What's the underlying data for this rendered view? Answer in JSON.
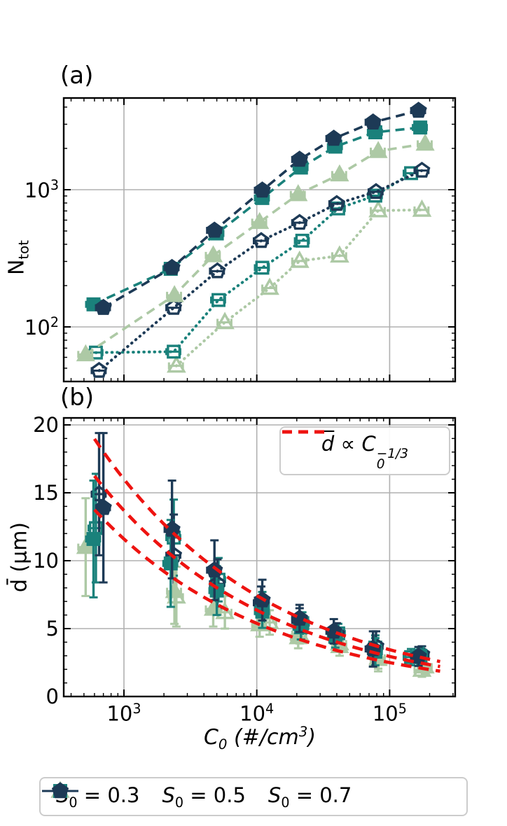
{
  "figure": {
    "panel_a_label": "(a)",
    "panel_b_label": "(b)",
    "colors": {
      "s03": "#adc9a5",
      "s05": "#1a817b",
      "s07": "#1d3a56",
      "fit": "#ee1310",
      "grid": "#b0b0b0",
      "spine": "#000000",
      "legend_border": "#cccccc"
    }
  },
  "axes": {
    "x": {
      "scale": "log",
      "min": 352,
      "max": 310000,
      "label": "C_0 (#/cm^3)",
      "ticks": [
        {
          "value": 1000,
          "label": "10^3"
        },
        {
          "value": 10000,
          "label": "10^4"
        },
        {
          "value": 100000,
          "label": "10^5"
        }
      ]
    },
    "a_y": {
      "scale": "log",
      "min": 40,
      "max": 4550,
      "label": "N_{tot}",
      "ticks": [
        {
          "value": 100,
          "label": "10^2"
        },
        {
          "value": 1000,
          "label": "10^3"
        }
      ]
    },
    "b_y": {
      "scale": "linear",
      "min": 0,
      "max": 20.5,
      "label": "d̄ (µm)",
      "ticks": [
        {
          "value": 0,
          "label": "0"
        },
        {
          "value": 5,
          "label": "5"
        },
        {
          "value": 10,
          "label": "10"
        },
        {
          "value": 15,
          "label": "15"
        },
        {
          "value": 20,
          "label": "20"
        }
      ]
    }
  },
  "chart_data": [
    {
      "panel": "a",
      "type": "line",
      "x_scale": "log",
      "y_scale": "log",
      "title": "",
      "xlabel": "",
      "ylabel": "N_tot",
      "xlim": [
        352,
        310000
      ],
      "ylim": [
        40,
        4550
      ],
      "grid": true,
      "series": [
        {
          "key": "s03_open",
          "name": "S0 = 0.3 (open)",
          "s0": 0.3,
          "marker": "triangle",
          "fill": "open",
          "linestyle": "dotted",
          "color_key": "s03",
          "x": [
            2480,
            5750,
            12500,
            21000,
            42000,
            82000,
            175000
          ],
          "y": [
            52,
            108,
            192,
            302,
            330,
            705,
            712
          ],
          "xerr_frac": 0.12
        },
        {
          "key": "s05_open",
          "name": "S0 = 0.5 (open)",
          "s0": 0.5,
          "marker": "square",
          "fill": "open",
          "linestyle": "dotted",
          "color_key": "s05",
          "x": [
            615,
            2370,
            5150,
            11000,
            22000,
            41000,
            78000,
            145000
          ],
          "y": [
            65,
            66,
            157,
            270,
            425,
            730,
            905,
            1320
          ],
          "xerr_frac": 0.12
        },
        {
          "key": "s07_open",
          "name": "S0 = 0.7 (open)",
          "s0": 0.7,
          "marker": "pentagon",
          "fill": "open",
          "linestyle": "dotted",
          "color_key": "s07",
          "x": [
            650,
            2370,
            5050,
            10800,
            21000,
            40000,
            79000,
            175000
          ],
          "y": [
            48,
            138,
            255,
            424,
            575,
            790,
            965,
            1380
          ],
          "xerr_frac": 0.12
        },
        {
          "key": "s03_filled",
          "name": "S0 = 0.3",
          "s0": 0.3,
          "marker": "triangle",
          "fill": "solid",
          "linestyle": "dashed",
          "color_key": "s03",
          "x": [
            515,
            2400,
            4700,
            10500,
            20500,
            42000,
            82000,
            185000
          ],
          "y": [
            63,
            170,
            332,
            580,
            925,
            1290,
            1910,
            2160
          ],
          "xerr_frac": 0.12
        },
        {
          "key": "s05_filled",
          "name": "S0 = 0.5",
          "s0": 0.5,
          "marker": "square",
          "fill": "solid",
          "linestyle": "dashed",
          "color_key": "s05",
          "x": [
            590,
            2250,
            5000,
            11000,
            21500,
            39000,
            78000,
            170000
          ],
          "y": [
            146,
            265,
            480,
            870,
            1450,
            2060,
            2620,
            2840
          ],
          "xerr_frac": 0.12
        },
        {
          "key": "s07_filled",
          "name": "S0 = 0.7",
          "s0": 0.7,
          "marker": "pentagon",
          "fill": "solid",
          "linestyle": "dashed",
          "color_key": "s07",
          "x": [
            700,
            2300,
            4800,
            11000,
            21000,
            38000,
            75000,
            165000
          ],
          "y": [
            138,
            270,
            505,
            990,
            1660,
            2360,
            3100,
            3770
          ],
          "xerr_frac": 0.12
        }
      ]
    },
    {
      "panel": "b",
      "type": "scatter",
      "x_scale": "log",
      "y_scale": "linear",
      "title": "",
      "xlabel": "C_0 (#/cm^3)",
      "ylabel": "d_bar (µm)",
      "xlim": [
        352,
        310000
      ],
      "ylim": [
        0,
        20.5
      ],
      "grid": true,
      "series": [
        {
          "key": "s03_open",
          "name": "S0 = 0.3 (open)",
          "s0": 0.3,
          "marker": "triangle",
          "fill": "open",
          "color_key": "s03",
          "x": [
            2480,
            5750,
            12500,
            21000,
            42000,
            82000,
            175000
          ],
          "y": [
            7.35,
            6.2,
            5.45,
            4.6,
            3.9,
            2.85,
            1.95
          ],
          "yerr": [
            2.2,
            1.2,
            0.9,
            0.7,
            0.6,
            0.8,
            0.5
          ],
          "xerr_frac": 0.12
        },
        {
          "key": "s05_open",
          "name": "S0 = 0.5 (open)",
          "s0": 0.5,
          "marker": "square",
          "fill": "open",
          "color_key": "s05",
          "x": [
            615,
            2370,
            5150,
            11000,
            22000,
            41000,
            78000,
            145000
          ],
          "y": [
            12.4,
            11.7,
            8.6,
            6.6,
            5.4,
            4.65,
            3.6,
            2.9
          ],
          "yerr": [
            4.0,
            2.8,
            1.6,
            1.1,
            0.8,
            0.7,
            0.9,
            0.6
          ],
          "xerr_frac": 0.12
        },
        {
          "key": "s07_open",
          "name": "S0 = 0.7 (open)",
          "s0": 0.7,
          "marker": "pentagon",
          "fill": "open",
          "color_key": "s07",
          "x": [
            650,
            2370,
            5050,
            10800,
            21000,
            40000,
            79000,
            175000
          ],
          "y": [
            14.9,
            10.4,
            8.3,
            6.9,
            5.6,
            4.6,
            3.7,
            3.1
          ],
          "yerr": [
            4.5,
            3.0,
            1.8,
            1.2,
            0.9,
            0.8,
            1.1,
            0.6
          ],
          "xerr_frac": 0.12
        },
        {
          "key": "s03_filled",
          "name": "S0 = 0.3",
          "s0": 0.3,
          "marker": "triangle",
          "fill": "solid",
          "color_key": "s03",
          "x": [
            515,
            2400,
            4700,
            10500,
            20500,
            42000,
            82000,
            185000
          ],
          "y": [
            11.0,
            7.75,
            6.45,
            5.3,
            4.35,
            3.7,
            2.75,
            2.2
          ],
          "yerr": [
            3.6,
            2.4,
            1.3,
            0.9,
            0.8,
            0.7,
            0.9,
            0.5
          ],
          "xerr_frac": 0.12
        },
        {
          "key": "s05_filled",
          "name": "S0 = 0.5",
          "s0": 0.5,
          "marker": "square",
          "fill": "solid",
          "color_key": "s05",
          "x": [
            590,
            2250,
            5000,
            11000,
            21500,
            39000,
            78000,
            170000
          ],
          "y": [
            11.6,
            9.8,
            7.8,
            6.25,
            5.1,
            4.4,
            3.3,
            3.0
          ],
          "yerr": [
            4.3,
            3.2,
            1.8,
            1.2,
            0.9,
            0.8,
            1.0,
            0.6
          ],
          "xerr_frac": 0.12
        },
        {
          "key": "s07_filled",
          "name": "S0 = 0.7",
          "s0": 0.7,
          "marker": "pentagon",
          "fill": "solid",
          "color_key": "s07",
          "x": [
            700,
            2300,
            4800,
            11000,
            21000,
            38000,
            75000,
            165000
          ],
          "y": [
            13.9,
            12.3,
            9.3,
            7.1,
            5.75,
            4.8,
            3.5,
            2.95
          ],
          "yerr": [
            5.5,
            3.6,
            2.2,
            1.5,
            1.0,
            0.9,
            1.3,
            0.7
          ],
          "xerr_frac": 0.12
        }
      ],
      "fits": {
        "label": "d̄ ∝ C_0^{−1/3}",
        "exponent": "−1/3",
        "coefficients_um": [
          160,
          137,
          116
        ],
        "x_range": [
          600,
          240000
        ],
        "linestyle": "dashed",
        "color_key": "fit"
      }
    }
  ],
  "legend_b": {
    "d": "d",
    "prop": "∝",
    "C": "C",
    "sub": "0",
    "sup": "−1/3"
  },
  "legend_bottom": {
    "items": [
      {
        "marker": "triangle",
        "fill": "solid",
        "color_key": "s03",
        "var": "S",
        "sub": "0",
        "rest": " = 0.3"
      },
      {
        "marker": "square",
        "fill": "solid",
        "color_key": "s05",
        "var": "S",
        "sub": "0",
        "rest": " = 0.5"
      },
      {
        "marker": "pentagon",
        "fill": "solid",
        "color_key": "s07",
        "var": "S",
        "sub": "0",
        "rest": " = 0.7"
      }
    ]
  }
}
